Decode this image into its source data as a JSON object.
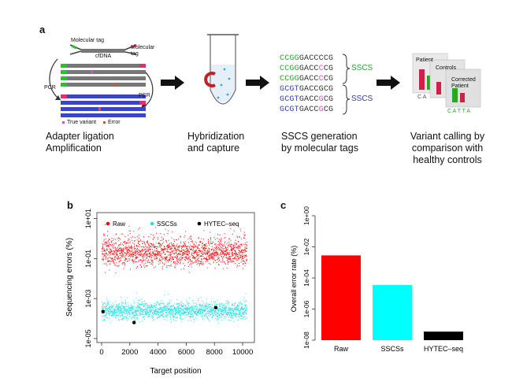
{
  "panel_a": {
    "letter": "a",
    "schematic": {
      "molecular_tag_left": "Molecular tag",
      "molecular_tag_right": "Molecular\ntag",
      "cfdna": "cfDNA",
      "pcr_left": "PCR",
      "pcr_right": "PCR",
      "legend_true_variant": "True variant",
      "legend_error": "Error"
    },
    "steps": [
      {
        "label": "Adapter ligation\nAmplification"
      },
      {
        "label": "Hybridization\nand capture"
      },
      {
        "label": "SSCS generation\nby molecular tags"
      },
      {
        "label": "Variant calling by\ncomparison with\nhealthy controls"
      }
    ],
    "sequences": [
      {
        "tag": "CCGG",
        "rest": "GACC",
        "var": "C",
        "end": "CG",
        "color": "#2aa52a"
      },
      {
        "tag": "CCGG",
        "rest": "GACC",
        "var": "C",
        "end": "CG",
        "color": "#2aa52a"
      },
      {
        "tag": "CCGG",
        "rest": "GACC",
        "var": "C",
        "end": "CG",
        "color": "#2aa52a"
      },
      {
        "tag": "GCGT",
        "rest": "GACC",
        "var": "G",
        "end": "CG",
        "color": "#2f3fb8"
      },
      {
        "tag": "GCGT",
        "rest": "GACC",
        "var": "G",
        "end": "CG",
        "color": "#2f3fb8"
      },
      {
        "tag": "GCGT",
        "rest": "GACC",
        "var": "G",
        "end": "CG",
        "color": "#2f3fb8"
      }
    ],
    "sscs_label": "SSCS",
    "variant_panel": {
      "patient": "Patient",
      "controls": "Controls",
      "corrected_patient": "Corrected\nPatient",
      "letters_1": "C  A",
      "letters_2": "C A T T A"
    }
  },
  "panel_b": {
    "letter": "b",
    "chart_data": {
      "type": "scatter",
      "xlabel": "Target position",
      "ylabel": "Sequencing errors (%)",
      "xlim": [
        0,
        10500
      ],
      "ylim_log10": [
        -5.2,
        1.3
      ],
      "x_ticks": [
        "0",
        "2000",
        "4000",
        "6000",
        "8000",
        "10000"
      ],
      "y_ticks": [
        "1e+01",
        "1e-01",
        "1e-03",
        "1e-05"
      ],
      "legend_placement": "top",
      "series": [
        {
          "name": "Raw",
          "color": "#ff0000",
          "center_log10": -0.7,
          "spread_log10": 0.55,
          "n_points": 1800
        },
        {
          "name": "SSCSs",
          "color": "#22e0e6",
          "center_log10": -3.6,
          "spread_log10": 0.35,
          "n_points": 1800
        },
        {
          "name": "HYTEC–seq",
          "color": "#000000",
          "points": [
            [
              100,
              -3.65
            ],
            [
              2300,
              -4.2
            ],
            [
              8100,
              -3.45
            ]
          ]
        }
      ]
    }
  },
  "panel_c": {
    "letter": "c",
    "chart_data": {
      "type": "bar",
      "categories": [
        "Raw",
        "SSCSs",
        "HYTEC–seq"
      ],
      "values_log10": [
        -2.55,
        -4.45,
        -7.45
      ],
      "colors": [
        "#ff0000",
        "#00ffff",
        "#000000"
      ],
      "ylabel": "Overall error rate (%)",
      "ylim_log10": [
        -8,
        0
      ],
      "y_ticks": [
        "1e+00",
        "1e-02",
        "1e-04",
        "1e-06",
        "1e-08"
      ]
    }
  }
}
